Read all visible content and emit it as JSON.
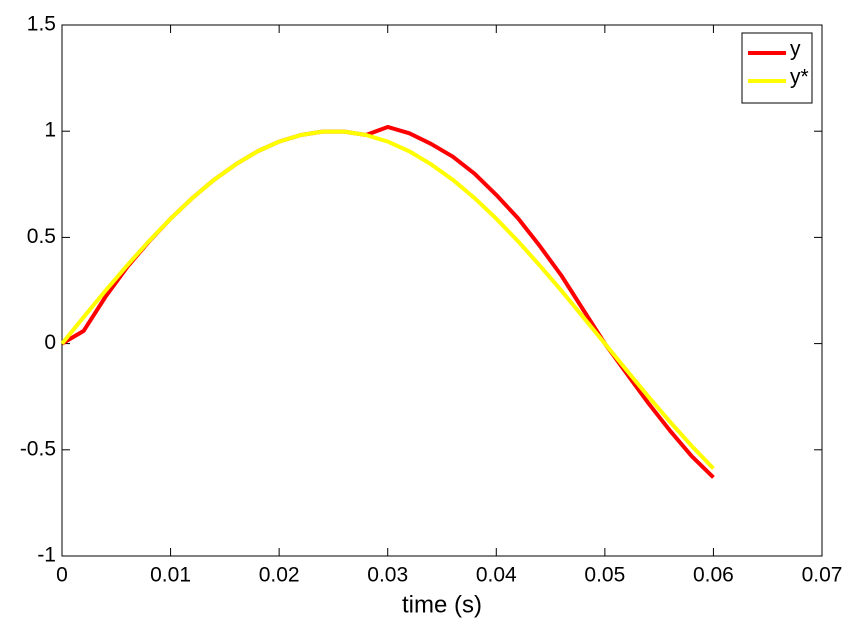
{
  "chart_data": {
    "type": "line",
    "xlabel": "time (s)",
    "x": [
      0,
      0.002,
      0.004,
      0.006,
      0.008,
      0.01,
      0.012,
      0.014,
      0.016,
      0.018,
      0.02,
      0.022,
      0.024,
      0.026,
      0.028,
      0.03,
      0.032,
      0.034,
      0.036,
      0.038,
      0.04,
      0.042,
      0.044,
      0.046,
      0.048,
      0.05,
      0.052,
      0.054,
      0.056,
      0.058,
      0.06
    ],
    "series": [
      {
        "name": "y",
        "color": "#ff0000",
        "values": [
          0,
          0.06,
          0.22,
          0.36,
          0.48,
          0.588,
          0.685,
          0.771,
          0.844,
          0.905,
          0.951,
          0.982,
          0.998,
          0.998,
          0.982,
          1.02,
          0.99,
          0.94,
          0.88,
          0.8,
          0.7,
          0.59,
          0.46,
          0.32,
          0.16,
          0,
          -0.14,
          -0.28,
          -0.41,
          -0.53,
          -0.63
        ]
      },
      {
        "name": "y*",
        "color": "#ffff00",
        "values": [
          0,
          0.125,
          0.249,
          0.368,
          0.482,
          0.588,
          0.685,
          0.771,
          0.844,
          0.905,
          0.951,
          0.982,
          0.998,
          0.998,
          0.982,
          0.951,
          0.905,
          0.844,
          0.771,
          0.685,
          0.588,
          0.482,
          0.368,
          0.249,
          0.125,
          0,
          -0.125,
          -0.249,
          -0.368,
          -0.482,
          -0.588
        ]
      }
    ],
    "xlim": [
      0,
      0.07
    ],
    "xticks": [
      0,
      0.01,
      0.02,
      0.03,
      0.04,
      0.05,
      0.06,
      0.07
    ],
    "ylim": [
      -1,
      1.5
    ],
    "yticks": [
      -1,
      -0.5,
      0,
      0.5,
      1,
      1.5
    ],
    "grid": false,
    "legend": "northeast"
  }
}
